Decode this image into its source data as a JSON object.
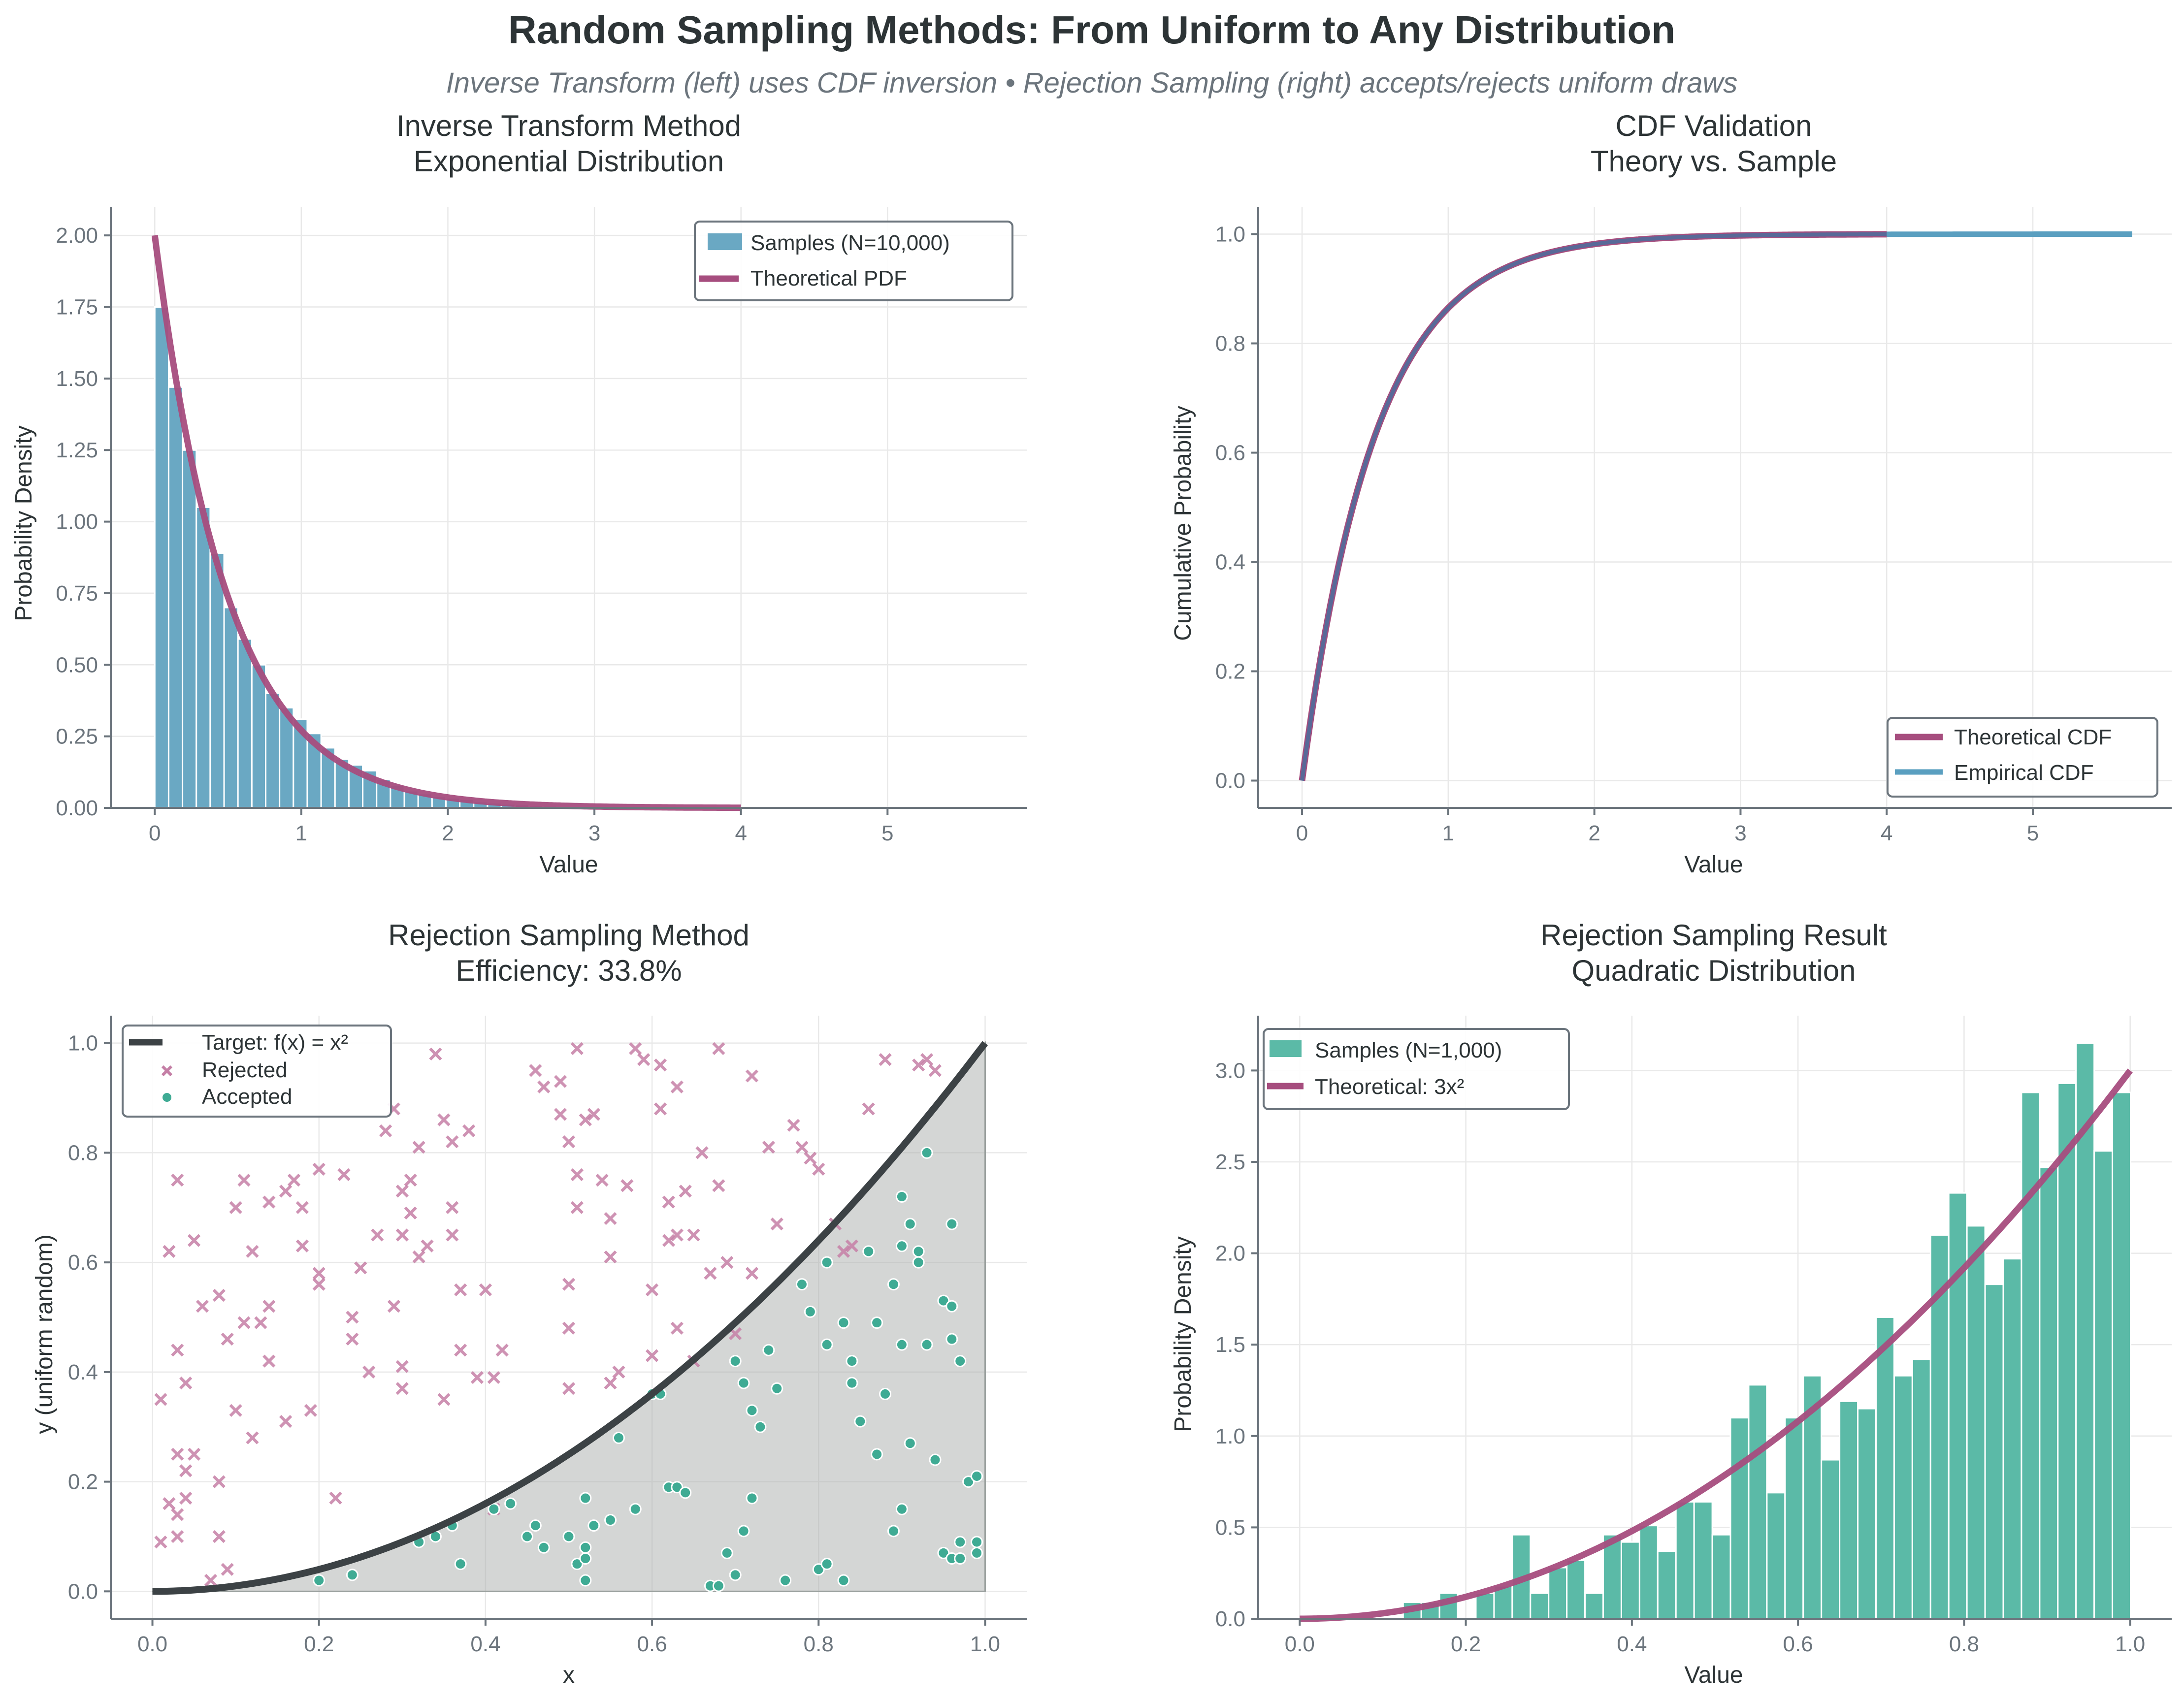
{
  "figure": {
    "title": "Random Sampling Methods: From Uniform to Any Distribution",
    "subtitle": "Inverse Transform (left) uses CDF inversion • Rejection Sampling (right) accepts/rejects uniform draws"
  },
  "colors": {
    "hist_blue": "#6aa8c3",
    "line_magenta": "#a64d7e",
    "cdf_blue": "#5a9fc0",
    "cdf_dark": "#4a6e9c",
    "target_dark": "#3c4245",
    "fill_gray": "#d5d8d7",
    "rejected": "#c57fa6",
    "accepted": "#3fab94",
    "hist_green": "#5bbaa7",
    "text_dark": "#2d3436",
    "text_gray": "#6c757d"
  },
  "chart_data": [
    {
      "id": "inverse-transform",
      "type": "bar",
      "title": "Inverse Transform Method\nExponential Distribution",
      "title_lines": [
        "Inverse Transform Method",
        "Exponential Distribution"
      ],
      "xlabel": "Value",
      "ylabel": "Probability Density",
      "xlim": [
        -0.3,
        5.95
      ],
      "ylim": [
        0,
        2.1
      ],
      "xticks": [
        0,
        1,
        2,
        3,
        4,
        5
      ],
      "xtick_labels": [
        "0",
        "1",
        "2",
        "3",
        "4",
        "5"
      ],
      "yticks": [
        0,
        0.25,
        0.5,
        0.75,
        1.0,
        1.25,
        1.5,
        1.75,
        2.0
      ],
      "ytick_labels": [
        "0.00",
        "0.25",
        "0.50",
        "0.75",
        "1.00",
        "1.25",
        "1.50",
        "1.75",
        "2.00"
      ],
      "grid": true,
      "legend": {
        "position": "top-right",
        "entries": [
          "Samples (N=10,000)",
          "Theoretical PDF"
        ]
      },
      "histogram": {
        "name": "Samples (N=10,000)",
        "bin_start": 0,
        "bin_width": 0.0946,
        "values": [
          1.75,
          1.47,
          1.25,
          1.05,
          0.89,
          0.7,
          0.59,
          0.5,
          0.4,
          0.35,
          0.31,
          0.26,
          0.21,
          0.17,
          0.15,
          0.13,
          0.1,
          0.08,
          0.06,
          0.05,
          0.04,
          0.035,
          0.03,
          0.022,
          0.018,
          0.014,
          0.012,
          0.009,
          0.007,
          0.006,
          0.005,
          0.004,
          0.003,
          0.003,
          0.002,
          0.002,
          0.001,
          0.001,
          0.001,
          0.001,
          0.001,
          0.0005,
          0.0005,
          0.0005,
          0.0005,
          0.0005,
          0.0003,
          0.0003,
          0.0003,
          0.0003,
          0.0002,
          0.0002,
          0.0002,
          0.0002,
          0.0002,
          0.0002,
          0.0001,
          0.0001,
          0.0001,
          0.0001
        ]
      },
      "line": {
        "name": "Theoretical PDF",
        "function": "2*exp(-2x)",
        "rate": 2,
        "x_range": [
          0,
          4
        ]
      }
    },
    {
      "id": "cdf-validation",
      "type": "line",
      "title": "CDF Validation\nTheory vs. Sample",
      "title_lines": [
        "CDF Validation",
        "Theory vs. Sample"
      ],
      "xlabel": "Value",
      "ylabel": "Cumulative Probability",
      "xlim": [
        -0.3,
        5.95
      ],
      "ylim": [
        -0.05,
        1.05
      ],
      "xticks": [
        0,
        1,
        2,
        3,
        4,
        5
      ],
      "xtick_labels": [
        "0",
        "1",
        "2",
        "3",
        "4",
        "5"
      ],
      "yticks": [
        0.0,
        0.2,
        0.4,
        0.6,
        0.8,
        1.0
      ],
      "ytick_labels": [
        "0.0",
        "0.2",
        "0.4",
        "0.6",
        "0.8",
        "1.0"
      ],
      "grid": true,
      "legend": {
        "position": "bottom-right",
        "entries": [
          "Theoretical CDF",
          "Empirical CDF"
        ]
      },
      "series": [
        {
          "name": "Theoretical CDF",
          "function": "1-exp(-2x)",
          "x_range": [
            0,
            4
          ]
        },
        {
          "name": "Empirical CDF",
          "function": "1-exp(-2x) (empirical)",
          "x_range": [
            0,
            5.68
          ]
        }
      ]
    },
    {
      "id": "rejection-method",
      "type": "scatter",
      "title": "Rejection Sampling Method\nEfficiency: 33.8%",
      "title_lines": [
        "Rejection Sampling Method",
        "Efficiency: 33.8%"
      ],
      "efficiency_percent": 33.8,
      "xlabel": "x",
      "ylabel": "y (uniform random)",
      "xlim": [
        -0.05,
        1.05
      ],
      "ylim": [
        -0.05,
        1.05
      ],
      "xticks": [
        0.0,
        0.2,
        0.4,
        0.6,
        0.8,
        1.0
      ],
      "xtick_labels": [
        "0.0",
        "0.2",
        "0.4",
        "0.6",
        "0.8",
        "1.0"
      ],
      "yticks": [
        0.0,
        0.2,
        0.4,
        0.6,
        0.8,
        1.0
      ],
      "ytick_labels": [
        "0.0",
        "0.2",
        "0.4",
        "0.6",
        "0.8",
        "1.0"
      ],
      "grid": true,
      "legend": {
        "position": "top-left",
        "entries": [
          "Target: f(x) = x²",
          "Rejected",
          "Accepted"
        ]
      },
      "target": {
        "name": "Target: f(x) = x²",
        "function": "x^2",
        "x_range": [
          0,
          1
        ]
      },
      "rejected": [
        [
          0.01,
          0.35
        ],
        [
          0.02,
          0.62
        ],
        [
          0.03,
          0.75
        ],
        [
          0.05,
          0.64
        ],
        [
          0.06,
          0.52
        ],
        [
          0.03,
          0.44
        ],
        [
          0.04,
          0.38
        ],
        [
          0.02,
          0.16
        ],
        [
          0.01,
          0.09
        ],
        [
          0.03,
          0.1
        ],
        [
          0.03,
          0.14
        ],
        [
          0.04,
          0.17
        ],
        [
          0.04,
          0.22
        ],
        [
          0.05,
          0.25
        ],
        [
          0.03,
          0.25
        ],
        [
          0.08,
          0.2
        ],
        [
          0.08,
          0.1
        ],
        [
          0.07,
          0.02
        ],
        [
          0.09,
          0.04
        ],
        [
          0.08,
          0.54
        ],
        [
          0.09,
          0.46
        ],
        [
          0.1,
          0.7
        ],
        [
          0.11,
          0.75
        ],
        [
          0.11,
          0.49
        ],
        [
          0.12,
          0.62
        ],
        [
          0.12,
          0.28
        ],
        [
          0.1,
          0.33
        ],
        [
          0.13,
          0.49
        ],
        [
          0.14,
          0.52
        ],
        [
          0.14,
          0.71
        ],
        [
          0.14,
          0.42
        ],
        [
          0.16,
          0.73
        ],
        [
          0.16,
          0.31
        ],
        [
          0.17,
          0.75
        ],
        [
          0.18,
          0.7
        ],
        [
          0.18,
          0.63
        ],
        [
          0.19,
          0.33
        ],
        [
          0.2,
          0.77
        ],
        [
          0.2,
          0.58
        ],
        [
          0.2,
          0.56
        ],
        [
          0.22,
          0.17
        ],
        [
          0.23,
          0.76
        ],
        [
          0.24,
          0.5
        ],
        [
          0.24,
          0.46
        ],
        [
          0.26,
          0.4
        ],
        [
          0.25,
          0.59
        ],
        [
          0.27,
          0.65
        ],
        [
          0.28,
          0.84
        ],
        [
          0.29,
          0.88
        ],
        [
          0.3,
          0.65
        ],
        [
          0.3,
          0.73
        ],
        [
          0.29,
          0.52
        ],
        [
          0.3,
          0.41
        ],
        [
          0.3,
          0.37
        ],
        [
          0.31,
          0.75
        ],
        [
          0.31,
          0.69
        ],
        [
          0.32,
          0.61
        ],
        [
          0.32,
          0.81
        ],
        [
          0.33,
          0.63
        ],
        [
          0.34,
          0.98
        ],
        [
          0.35,
          0.35
        ],
        [
          0.35,
          0.86
        ],
        [
          0.36,
          0.82
        ],
        [
          0.36,
          0.7
        ],
        [
          0.36,
          0.65
        ],
        [
          0.37,
          0.55
        ],
        [
          0.37,
          0.44
        ],
        [
          0.38,
          0.84
        ],
        [
          0.39,
          0.39
        ],
        [
          0.4,
          0.55
        ],
        [
          0.41,
          0.39
        ],
        [
          0.42,
          0.44
        ],
        [
          0.41,
          0.15
        ],
        [
          0.46,
          0.95
        ],
        [
          0.47,
          0.92
        ],
        [
          0.49,
          0.93
        ],
        [
          0.49,
          0.87
        ],
        [
          0.5,
          0.82
        ],
        [
          0.5,
          0.56
        ],
        [
          0.5,
          0.48
        ],
        [
          0.5,
          0.37
        ],
        [
          0.51,
          0.99
        ],
        [
          0.51,
          0.76
        ],
        [
          0.51,
          0.7
        ],
        [
          0.52,
          0.86
        ],
        [
          0.53,
          0.87
        ],
        [
          0.54,
          0.75
        ],
        [
          0.55,
          0.68
        ],
        [
          0.55,
          0.38
        ],
        [
          0.55,
          0.61
        ],
        [
          0.56,
          0.4
        ],
        [
          0.57,
          0.74
        ],
        [
          0.58,
          0.99
        ],
        [
          0.59,
          0.97
        ],
        [
          0.6,
          0.55
        ],
        [
          0.6,
          0.43
        ],
        [
          0.61,
          0.96
        ],
        [
          0.61,
          0.88
        ],
        [
          0.62,
          0.64
        ],
        [
          0.62,
          0.71
        ],
        [
          0.63,
          0.65
        ],
        [
          0.63,
          0.48
        ],
        [
          0.63,
          0.92
        ],
        [
          0.64,
          0.73
        ],
        [
          0.65,
          0.65
        ],
        [
          0.65,
          0.42
        ],
        [
          0.66,
          0.8
        ],
        [
          0.67,
          0.58
        ],
        [
          0.68,
          0.99
        ],
        [
          0.68,
          0.74
        ],
        [
          0.69,
          0.6
        ],
        [
          0.7,
          0.47
        ],
        [
          0.72,
          0.94
        ],
        [
          0.72,
          0.58
        ],
        [
          0.74,
          0.81
        ],
        [
          0.75,
          0.67
        ],
        [
          0.77,
          0.85
        ],
        [
          0.78,
          0.81
        ],
        [
          0.79,
          0.79
        ],
        [
          0.8,
          0.77
        ],
        [
          0.82,
          0.67
        ],
        [
          0.83,
          0.62
        ],
        [
          0.84,
          0.63
        ],
        [
          0.86,
          0.88
        ],
        [
          0.88,
          0.97
        ],
        [
          0.92,
          0.96
        ],
        [
          0.93,
          0.97
        ],
        [
          0.94,
          0.95
        ]
      ],
      "accepted": [
        [
          0.2,
          0.02
        ],
        [
          0.24,
          0.03
        ],
        [
          0.32,
          0.09
        ],
        [
          0.34,
          0.1
        ],
        [
          0.36,
          0.12
        ],
        [
          0.37,
          0.05
        ],
        [
          0.41,
          0.15
        ],
        [
          0.43,
          0.16
        ],
        [
          0.45,
          0.1
        ],
        [
          0.46,
          0.12
        ],
        [
          0.47,
          0.08
        ],
        [
          0.5,
          0.1
        ],
        [
          0.51,
          0.05
        ],
        [
          0.52,
          0.06
        ],
        [
          0.52,
          0.08
        ],
        [
          0.52,
          0.02
        ],
        [
          0.52,
          0.17
        ],
        [
          0.53,
          0.12
        ],
        [
          0.55,
          0.13
        ],
        [
          0.56,
          0.28
        ],
        [
          0.58,
          0.15
        ],
        [
          0.6,
          0.36
        ],
        [
          0.61,
          0.36
        ],
        [
          0.62,
          0.19
        ],
        [
          0.63,
          0.19
        ],
        [
          0.64,
          0.18
        ],
        [
          0.67,
          0.01
        ],
        [
          0.68,
          0.01
        ],
        [
          0.69,
          0.07
        ],
        [
          0.7,
          0.03
        ],
        [
          0.7,
          0.42
        ],
        [
          0.71,
          0.38
        ],
        [
          0.71,
          0.11
        ],
        [
          0.72,
          0.33
        ],
        [
          0.72,
          0.17
        ],
        [
          0.73,
          0.3
        ],
        [
          0.74,
          0.44
        ],
        [
          0.75,
          0.37
        ],
        [
          0.76,
          0.02
        ],
        [
          0.78,
          0.56
        ],
        [
          0.79,
          0.51
        ],
        [
          0.81,
          0.45
        ],
        [
          0.81,
          0.6
        ],
        [
          0.83,
          0.49
        ],
        [
          0.84,
          0.38
        ],
        [
          0.85,
          0.31
        ],
        [
          0.86,
          0.62
        ],
        [
          0.87,
          0.25
        ],
        [
          0.88,
          0.36
        ],
        [
          0.9,
          0.63
        ],
        [
          0.9,
          0.45
        ],
        [
          0.91,
          0.27
        ],
        [
          0.92,
          0.62
        ],
        [
          0.93,
          0.45
        ],
        [
          0.94,
          0.24
        ],
        [
          0.95,
          0.53
        ],
        [
          0.96,
          0.52
        ],
        [
          0.97,
          0.09
        ],
        [
          0.97,
          0.42
        ],
        [
          0.98,
          0.2
        ],
        [
          0.99,
          0.09
        ],
        [
          0.99,
          0.21
        ],
        [
          0.8,
          0.04
        ],
        [
          0.81,
          0.05
        ],
        [
          0.83,
          0.02
        ],
        [
          0.89,
          0.11
        ],
        [
          0.9,
          0.15
        ],
        [
          0.95,
          0.07
        ],
        [
          0.96,
          0.06
        ],
        [
          0.97,
          0.06
        ],
        [
          0.99,
          0.07
        ],
        [
          0.9,
          0.72
        ],
        [
          0.91,
          0.67
        ],
        [
          0.93,
          0.8
        ],
        [
          0.96,
          0.67
        ],
        [
          0.84,
          0.42
        ],
        [
          0.87,
          0.49
        ],
        [
          0.89,
          0.56
        ],
        [
          0.92,
          0.6
        ],
        [
          0.96,
          0.46
        ]
      ]
    },
    {
      "id": "rejection-result",
      "type": "bar",
      "title": "Rejection Sampling Result\nQuadratic Distribution",
      "title_lines": [
        "Rejection Sampling Result",
        "Quadratic Distribution"
      ],
      "xlabel": "Value",
      "ylabel": "Probability Density",
      "xlim": [
        -0.05,
        1.05
      ],
      "ylim": [
        0,
        3.3
      ],
      "xticks": [
        0.0,
        0.2,
        0.4,
        0.6,
        0.8,
        1.0
      ],
      "xtick_labels": [
        "0.0",
        "0.2",
        "0.4",
        "0.6",
        "0.8",
        "1.0"
      ],
      "yticks": [
        0.0,
        0.5,
        1.0,
        1.5,
        2.0,
        2.5,
        3.0
      ],
      "ytick_labels": [
        "0.0",
        "0.5",
        "1.0",
        "1.5",
        "2.0",
        "2.5",
        "3.0"
      ],
      "grid": true,
      "legend": {
        "position": "top-left",
        "entries": [
          "Samples (N=1,000)",
          "Theoretical: 3x²"
        ]
      },
      "histogram": {
        "name": "Samples (N=1,000)",
        "bin_start": 0.1245,
        "bin_width": 0.0219,
        "values": [
          0.09,
          0.09,
          0.14,
          0.0,
          0.14,
          0.18,
          0.46,
          0.14,
          0.28,
          0.32,
          0.14,
          0.46,
          0.42,
          0.51,
          0.37,
          0.64,
          0.64,
          0.46,
          1.1,
          1.28,
          0.69,
          1.1,
          1.33,
          0.87,
          1.19,
          1.15,
          1.65,
          1.33,
          1.42,
          2.1,
          2.33,
          2.15,
          1.83,
          1.97,
          2.88,
          2.47,
          2.93,
          3.15,
          2.56,
          2.88
        ]
      },
      "line": {
        "name": "Theoretical: 3x²",
        "function": "3*x^2",
        "x_range": [
          0,
          1
        ]
      }
    }
  ]
}
